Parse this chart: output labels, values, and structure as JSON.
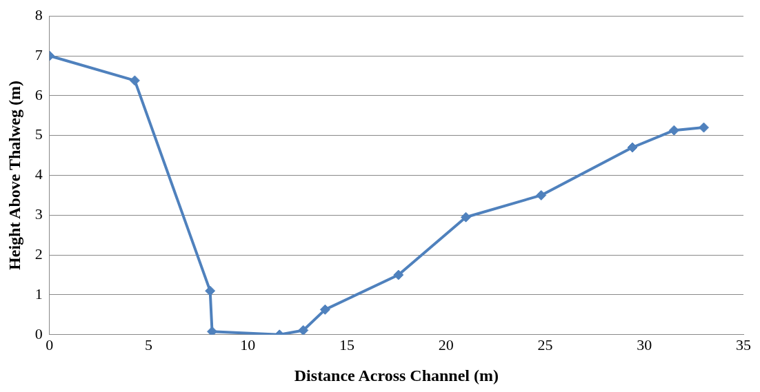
{
  "chart_data": {
    "type": "line",
    "xlabel": "Distance Across Channel (m)",
    "ylabel": "Height Above Thalweg (m)",
    "x": [
      0,
      4.3,
      8.1,
      8.2,
      11.6,
      12.8,
      13.9,
      17.6,
      21.0,
      24.8,
      29.4,
      31.5,
      33.0
    ],
    "series": [
      {
        "color": "#4f81bd",
        "values": [
          7.0,
          6.38,
          1.1,
          0.08,
          0,
          0.11,
          0.63,
          1.5,
          2.95,
          3.5,
          4.7,
          5.13,
          5.2
        ]
      }
    ],
    "xlim": [
      0,
      35
    ],
    "xticks": [
      0,
      5,
      10,
      15,
      20,
      25,
      30,
      35
    ],
    "ylim": [
      0,
      8
    ],
    "yticks": [
      0,
      1,
      2,
      3,
      4,
      5,
      6,
      7,
      8
    ],
    "grid": "y",
    "legend": false,
    "marker": "diamond",
    "line_style": "solid"
  }
}
